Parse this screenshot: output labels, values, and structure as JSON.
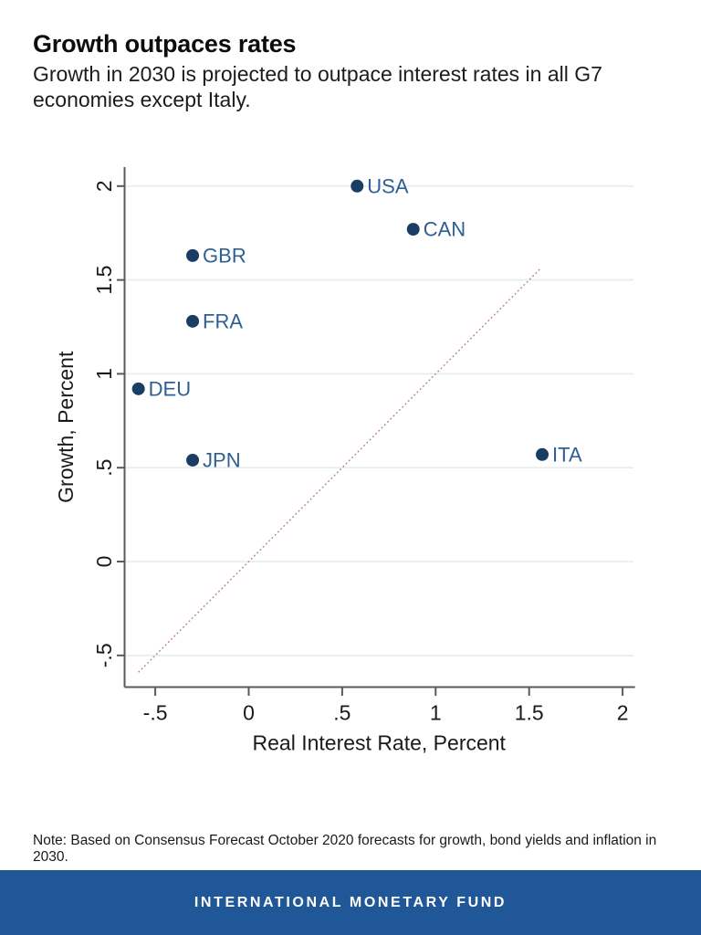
{
  "header": {
    "title": "Growth outpaces rates",
    "subtitle": "Growth in 2030 is projected to outpace interest rates in all G7 economies except Italy."
  },
  "chart_data": {
    "type": "scatter",
    "xlabel": "Real Interest Rate, Percent",
    "ylabel": "Growth, Percent",
    "xlim": [
      -0.67,
      2.07
    ],
    "ylim": [
      -0.67,
      2.1
    ],
    "grid": "horizontal gridlines only",
    "legend": "none",
    "x_ticks": [
      {
        "value": -0.5,
        "label": "-.5"
      },
      {
        "value": 0,
        "label": "0"
      },
      {
        "value": 0.5,
        "label": ".5"
      },
      {
        "value": 1,
        "label": "1"
      },
      {
        "value": 1.5,
        "label": "1.5"
      },
      {
        "value": 2,
        "label": "2"
      }
    ],
    "y_ticks": [
      {
        "value": 2,
        "label": "2"
      },
      {
        "value": 1.5,
        "label": "1.5"
      },
      {
        "value": 1,
        "label": "1"
      },
      {
        "value": 0.5,
        "label": ".5"
      },
      {
        "value": 0,
        "label": "0"
      },
      {
        "value": -0.5,
        "label": "-.5"
      }
    ],
    "points": [
      {
        "label": "USA",
        "x": 0.58,
        "y": 2.0
      },
      {
        "label": "CAN",
        "x": 0.88,
        "y": 1.77
      },
      {
        "label": "GBR",
        "x": -0.3,
        "y": 1.63
      },
      {
        "label": "FRA",
        "x": -0.3,
        "y": 1.28
      },
      {
        "label": "DEU",
        "x": -0.59,
        "y": 0.92
      },
      {
        "label": "JPN",
        "x": -0.3,
        "y": 0.54
      },
      {
        "label": "ITA",
        "x": 1.57,
        "y": 0.57
      }
    ],
    "reference_line": {
      "style": "dotted",
      "x1": -0.59,
      "y1": -0.59,
      "x2": 1.56,
      "y2": 1.56
    },
    "colors": {
      "point": "#1a3e63",
      "point_label": "#2f5f92",
      "gridline": "#e2edef",
      "axis": "#5a5a5a",
      "tick_label": "#1a1a1a",
      "reference_line": "#c4808e"
    }
  },
  "note": "Note: Based on Consensus Forecast October 2020 forecasts for growth, bond yields and inflation in 2030.",
  "footer": {
    "label": "INTERNATIONAL MONETARY FUND",
    "background": "#1f5799"
  }
}
